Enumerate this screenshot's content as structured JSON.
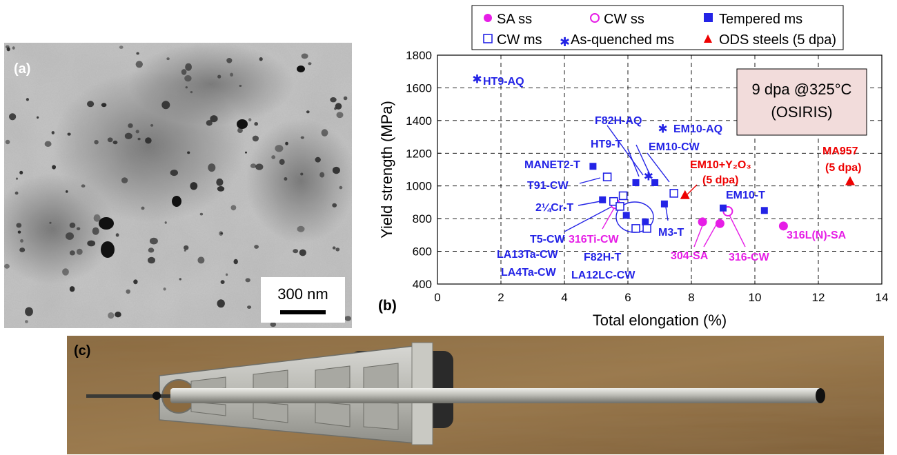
{
  "panel_a": {
    "label": "(a)",
    "scale_bar": "300 nm"
  },
  "panel_c": {
    "label": "(c)"
  },
  "chart_data": {
    "type": "scatter",
    "panel_label": "(b)",
    "xlabel": "Total elongation (%)",
    "ylabel": "Yield strength (MPa)",
    "xlim": [
      0,
      14
    ],
    "ylim": [
      400,
      1800
    ],
    "xticks": [
      0,
      2,
      4,
      6,
      8,
      10,
      12,
      14
    ],
    "yticks": [
      400,
      600,
      800,
      1000,
      1200,
      1400,
      1600,
      1800
    ],
    "grid": true,
    "legend_position": "top",
    "annotation_box": [
      "9 dpa @325°C",
      "(OSIRIS)"
    ],
    "series": [
      {
        "name": "SA ss",
        "marker": "filled-circle",
        "color": "#e61ee6",
        "points": [
          [
            8.35,
            780
          ],
          [
            8.9,
            770
          ],
          [
            10.9,
            755
          ]
        ]
      },
      {
        "name": "CW ss",
        "marker": "open-circle",
        "color": "#e61ee6",
        "points": [
          [
            5.6,
            890
          ],
          [
            9.15,
            845
          ]
        ]
      },
      {
        "name": "Tempered ms",
        "marker": "filled-square",
        "color": "#2323e6",
        "points": [
          [
            4.9,
            1120
          ],
          [
            5.2,
            915
          ],
          [
            5.95,
            820
          ],
          [
            6.25,
            1020
          ],
          [
            6.85,
            1020
          ],
          [
            6.55,
            780
          ],
          [
            7.15,
            890
          ],
          [
            9.0,
            865
          ],
          [
            10.3,
            850
          ]
        ]
      },
      {
        "name": "CW ms",
        "marker": "open-square",
        "color": "#2323e6",
        "points": [
          [
            5.35,
            1055
          ],
          [
            5.85,
            940
          ],
          [
            5.55,
            905
          ],
          [
            5.75,
            875
          ],
          [
            6.25,
            740
          ],
          [
            6.6,
            740
          ],
          [
            7.45,
            955
          ]
        ]
      },
      {
        "name": "As-quenched ms",
        "marker": "asterisk",
        "color": "#2323e6",
        "points": [
          [
            1.25,
            1655
          ],
          [
            6.65,
            1060
          ],
          [
            7.1,
            1350
          ]
        ]
      },
      {
        "name": "ODS steels (5 dpa)",
        "marker": "filled-triangle",
        "color": "#ee0000",
        "points": [
          [
            7.8,
            945
          ],
          [
            13.0,
            1030
          ]
        ]
      }
    ],
    "annotations": [
      {
        "text": "HT9-AQ",
        "color": "#2323e6"
      },
      {
        "text": "F82H-AQ",
        "color": "#2323e6"
      },
      {
        "text": "EM10-AQ",
        "color": "#2323e6"
      },
      {
        "text": "HT9-T",
        "color": "#2323e6"
      },
      {
        "text": "EM10-CW",
        "color": "#2323e6"
      },
      {
        "text": "MANET2-T",
        "color": "#2323e6"
      },
      {
        "text": "T91-CW",
        "color": "#2323e6"
      },
      {
        "text": "2¼Cr-T",
        "color": "#2323e6"
      },
      {
        "text": "EM10-T",
        "color": "#2323e6"
      },
      {
        "text": "M3-T",
        "color": "#2323e6"
      },
      {
        "text": "T5-CW",
        "color": "#2323e6"
      },
      {
        "text": "LA13Ta-CW",
        "color": "#2323e6"
      },
      {
        "text": "LA4Ta-CW",
        "color": "#2323e6"
      },
      {
        "text": "F82H-T",
        "color": "#2323e6"
      },
      {
        "text": "LA12LC-CW",
        "color": "#2323e6"
      },
      {
        "text": "316Ti-CW",
        "color": "#e61ee6"
      },
      {
        "text": "304-SA",
        "color": "#e61ee6"
      },
      {
        "text": "316-CW",
        "color": "#e61ee6"
      },
      {
        "text": "316L(N)-SA",
        "color": "#e61ee6"
      },
      {
        "text": "EM10+Y₂O₃",
        "color": "#ee0000"
      },
      {
        "text": "(5 dpa)",
        "color": "#ee0000"
      },
      {
        "text": "MA957",
        "color": "#ee0000"
      },
      {
        "text": "(5 dpa)",
        "color": "#ee0000"
      }
    ]
  }
}
